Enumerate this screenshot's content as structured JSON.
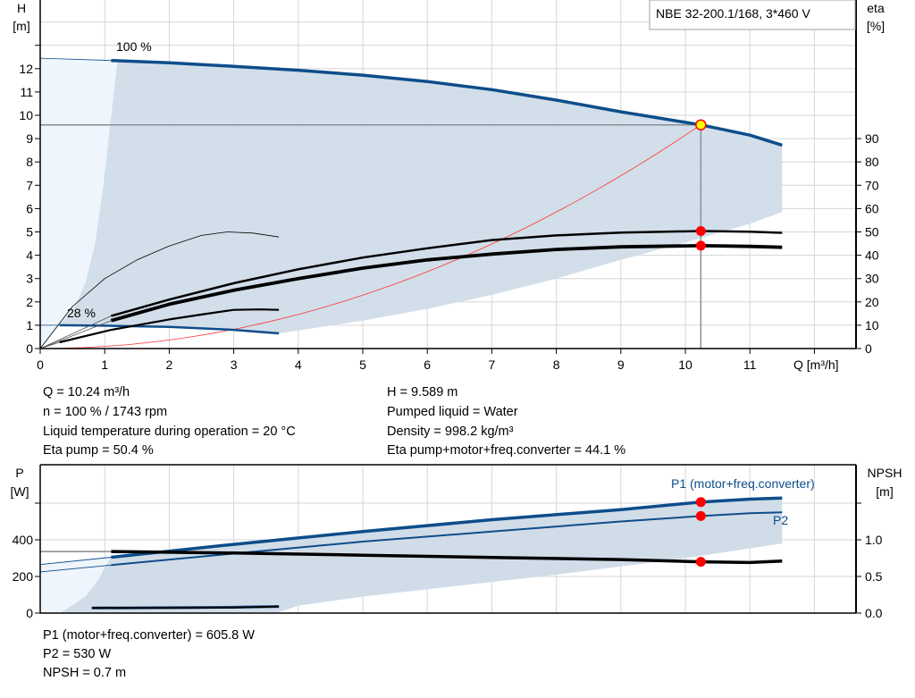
{
  "chart_data": [
    {
      "type": "line",
      "title": "NBE 32-200.1/168, 3*460 V",
      "xlabel": "Q [m³/h]",
      "ylabel_left": [
        "H",
        "[m]"
      ],
      "ylabel_right": [
        "eta",
        "[%]"
      ],
      "xlim": [
        0,
        12.6
      ],
      "ylim_left": [
        0,
        15
      ],
      "ylim_right": [
        0,
        150
      ],
      "x_ticks": [
        "0",
        "1",
        "2",
        "3",
        "4",
        "5",
        "6",
        "7",
        "8",
        "9",
        "10",
        "11"
      ],
      "y_ticks_left": [
        "0",
        "1",
        "2",
        "3",
        "4",
        "5",
        "6",
        "7",
        "8",
        "9",
        "10",
        "11",
        "12"
      ],
      "y_ticks_right": [
        "0",
        "10",
        "20",
        "30",
        "40",
        "50",
        "60",
        "70",
        "80",
        "90"
      ],
      "grid": true,
      "curve_labels": {
        "max_speed": "100 %",
        "min_speed": "28 %"
      },
      "colors": {
        "head": "#0d4d8a",
        "eta": "#000000",
        "system": "#ff3333",
        "region": "#d0dce8",
        "region_light": "#eef5fc",
        "marker": "#ff0000",
        "duty_point": "#ffff00"
      },
      "duty_point": {
        "Q": 10.24,
        "H": 9.589,
        "eta_pump": 50.4,
        "eta_total": 44.1
      },
      "series": [
        {
          "id": "head_100",
          "axis": "H",
          "ext": [
            [
              0,
              12.45
            ],
            [
              1.1,
              12.35
            ]
          ],
          "points": [
            [
              1.1,
              12.35
            ],
            [
              2,
              12.25
            ],
            [
              3,
              12.1
            ],
            [
              4,
              11.93
            ],
            [
              5,
              11.72
            ],
            [
              6,
              11.45
            ],
            [
              7,
              11.1
            ],
            [
              8,
              10.65
            ],
            [
              9,
              10.15
            ],
            [
              10.24,
              9.589
            ],
            [
              11,
              9.15
            ],
            [
              11.5,
              8.72
            ]
          ]
        },
        {
          "id": "head_28",
          "axis": "H",
          "ext": [
            [
              0,
              1.0
            ],
            [
              0.3,
              1.0
            ]
          ],
          "points": [
            [
              0.3,
              1.0
            ],
            [
              1,
              0.98
            ],
            [
              2,
              0.93
            ],
            [
              3,
              0.8
            ],
            [
              3.7,
              0.65
            ]
          ]
        },
        {
          "id": "eta_pump",
          "axis": "eta",
          "ext": [
            [
              0,
              0
            ],
            [
              1.1,
              14
            ]
          ],
          "points": [
            [
              1.1,
              14
            ],
            [
              2,
              21
            ],
            [
              3,
              28
            ],
            [
              4,
              34
            ],
            [
              5,
              39
            ],
            [
              6,
              43
            ],
            [
              7,
              46.5
            ],
            [
              8,
              48.5
            ],
            [
              9,
              49.7
            ],
            [
              10.24,
              50.4
            ],
            [
              11,
              50.1
            ],
            [
              11.5,
              49.6
            ]
          ]
        },
        {
          "id": "eta_total",
          "axis": "eta",
          "ext": [
            [
              0,
              0
            ],
            [
              1.1,
              12
            ]
          ],
          "points": [
            [
              1.1,
              12
            ],
            [
              2,
              19
            ],
            [
              3,
              25
            ],
            [
              4,
              30
            ],
            [
              5,
              34.5
            ],
            [
              6,
              38
            ],
            [
              7,
              40.5
            ],
            [
              8,
              42.5
            ],
            [
              9,
              43.6
            ],
            [
              10.24,
              44.1
            ],
            [
              11,
              43.8
            ],
            [
              11.5,
              43.4
            ]
          ]
        },
        {
          "id": "eta_pump_min",
          "axis": "eta",
          "points": [
            [
              0,
              0
            ],
            [
              0.5,
              18
            ],
            [
              1,
              30
            ],
            [
              1.5,
              38
            ],
            [
              2,
              44
            ],
            [
              2.5,
              48.5
            ],
            [
              2.9,
              50
            ],
            [
              3.3,
              49.5
            ],
            [
              3.7,
              47.8
            ]
          ]
        },
        {
          "id": "eta_total_min",
          "axis": "eta",
          "ext": [
            [
              0,
              0
            ],
            [
              0.3,
              2.7
            ]
          ],
          "points": [
            [
              0.3,
              2.7
            ],
            [
              1.1,
              8
            ],
            [
              2,
              12.5
            ],
            [
              2.6,
              15
            ],
            [
              3,
              16.6
            ],
            [
              3.4,
              16.8
            ],
            [
              3.7,
              16.6
            ]
          ]
        }
      ],
      "region_upper": [
        [
          1.2,
          12.35
        ],
        [
          2,
          12.25
        ],
        [
          3,
          12.1
        ],
        [
          4,
          11.93
        ],
        [
          5,
          11.72
        ],
        [
          6,
          11.45
        ],
        [
          7,
          11.1
        ],
        [
          8,
          10.65
        ],
        [
          9,
          10.15
        ],
        [
          10.24,
          9.589
        ],
        [
          11,
          9.15
        ],
        [
          11.5,
          8.72
        ]
      ],
      "region_lower": [
        [
          11.5,
          5.85
        ],
        [
          11,
          5.35
        ],
        [
          10,
          4.55
        ],
        [
          9,
          3.8
        ],
        [
          8,
          3.0
        ],
        [
          7,
          2.3
        ],
        [
          6,
          1.7
        ],
        [
          5,
          1.2
        ],
        [
          3.7,
          0.65
        ],
        [
          3,
          0.8
        ],
        [
          2,
          0.93
        ],
        [
          1,
          0.98
        ],
        [
          0.3,
          1.0
        ]
      ],
      "region_left": [
        [
          0.3,
          1.0
        ],
        [
          0.5,
          1.6
        ],
        [
          0.7,
          2.8
        ],
        [
          0.85,
          4.5
        ],
        [
          0.98,
          7
        ],
        [
          1.08,
          9.5
        ],
        [
          1.2,
          12.35
        ]
      ]
    },
    {
      "type": "line",
      "xlabel": "",
      "ylabel_left": [
        "P",
        "[W]"
      ],
      "ylabel_right": [
        "NPSH",
        "[m]"
      ],
      "xlim": [
        0,
        12.6
      ],
      "ylim_left": [
        0,
        810
      ],
      "ylim_right": [
        0,
        2.025
      ],
      "y_ticks_left": [
        "0",
        "200",
        "400"
      ],
      "y_ticks_right": [
        "0.0",
        "0.5",
        "1.0"
      ],
      "grid": true,
      "series_labels": {
        "p1": "P1 (motor+freq.converter)",
        "p2": "P2"
      },
      "duty_point": {
        "Q": 10.24,
        "P1": 605.8,
        "P2": 530,
        "NPSH": 0.7
      },
      "series": [
        {
          "id": "p1",
          "axis": "P",
          "ext": [
            [
              0,
              265
            ],
            [
              1.1,
              305
            ]
          ],
          "points": [
            [
              1.1,
              305
            ],
            [
              3,
              375
            ],
            [
              5,
              445
            ],
            [
              7,
              510
            ],
            [
              9,
              565
            ],
            [
              10.24,
              605.8
            ],
            [
              11,
              622
            ],
            [
              11.5,
              628
            ]
          ]
        },
        {
          "id": "p2",
          "axis": "P",
          "ext": [
            [
              0,
              225
            ],
            [
              1.1,
              262
            ]
          ],
          "points": [
            [
              1.1,
              262
            ],
            [
              3,
              325
            ],
            [
              5,
              390
            ],
            [
              7,
              445
            ],
            [
              9,
              500
            ],
            [
              10.24,
              530
            ],
            [
              11,
              545
            ],
            [
              11.5,
              550
            ]
          ]
        },
        {
          "id": "npsh",
          "axis": "NPSH",
          "ext": [
            [
              0,
              0.84
            ],
            [
              1.1,
              0.84
            ]
          ],
          "points": [
            [
              1.1,
              0.84
            ],
            [
              3,
              0.82
            ],
            [
              5,
              0.79
            ],
            [
              7,
              0.76
            ],
            [
              9,
              0.73
            ],
            [
              10.24,
              0.7
            ],
            [
              11,
              0.69
            ],
            [
              11.5,
              0.71
            ]
          ]
        },
        {
          "id": "p1_min",
          "axis": "P",
          "points": [
            [
              0.8,
              28
            ],
            [
              2,
              30
            ],
            [
              3,
              32
            ],
            [
              3.7,
              36
            ]
          ]
        },
        {
          "id": "npsh_min",
          "axis": "NPSH",
          "points": [
            [
              0.8,
              0.07
            ],
            [
              2,
              0.07
            ],
            [
              3,
              0.075
            ],
            [
              3.7,
              0.09
            ]
          ]
        }
      ],
      "region_upper": [
        [
          1.1,
          305
        ],
        [
          3,
          375
        ],
        [
          5,
          445
        ],
        [
          7,
          510
        ],
        [
          9,
          565
        ],
        [
          10.24,
          605.8
        ],
        [
          11,
          622
        ],
        [
          11.5,
          628
        ]
      ],
      "region_lower": [
        [
          11.5,
          380
        ],
        [
          10,
          300
        ],
        [
          8,
          210
        ],
        [
          6,
          130
        ],
        [
          5,
          90
        ],
        [
          4,
          40
        ],
        [
          3.7,
          5
        ]
      ],
      "region_left": [
        [
          0.3,
          0
        ],
        [
          0.4,
          20
        ],
        [
          0.7,
          90
        ],
        [
          0.9,
          180
        ],
        [
          1.0,
          250
        ],
        [
          1.1,
          305
        ]
      ]
    }
  ],
  "info_top": {
    "left": [
      "Q = 10.24 m³/h",
      "n = 100 % / 1743 rpm",
      "Liquid temperature during operation = 20 °C",
      "Eta pump = 50.4 %"
    ],
    "right": [
      "H = 9.589 m",
      "Pumped liquid = Water",
      "Density = 998.2 kg/m³",
      "Eta pump+motor+freq.converter = 44.1 %"
    ]
  },
  "info_bottom": [
    "P1 (motor+freq.converter) = 605.8 W",
    "P2 = 530 W",
    "NPSH = 0.7 m"
  ]
}
